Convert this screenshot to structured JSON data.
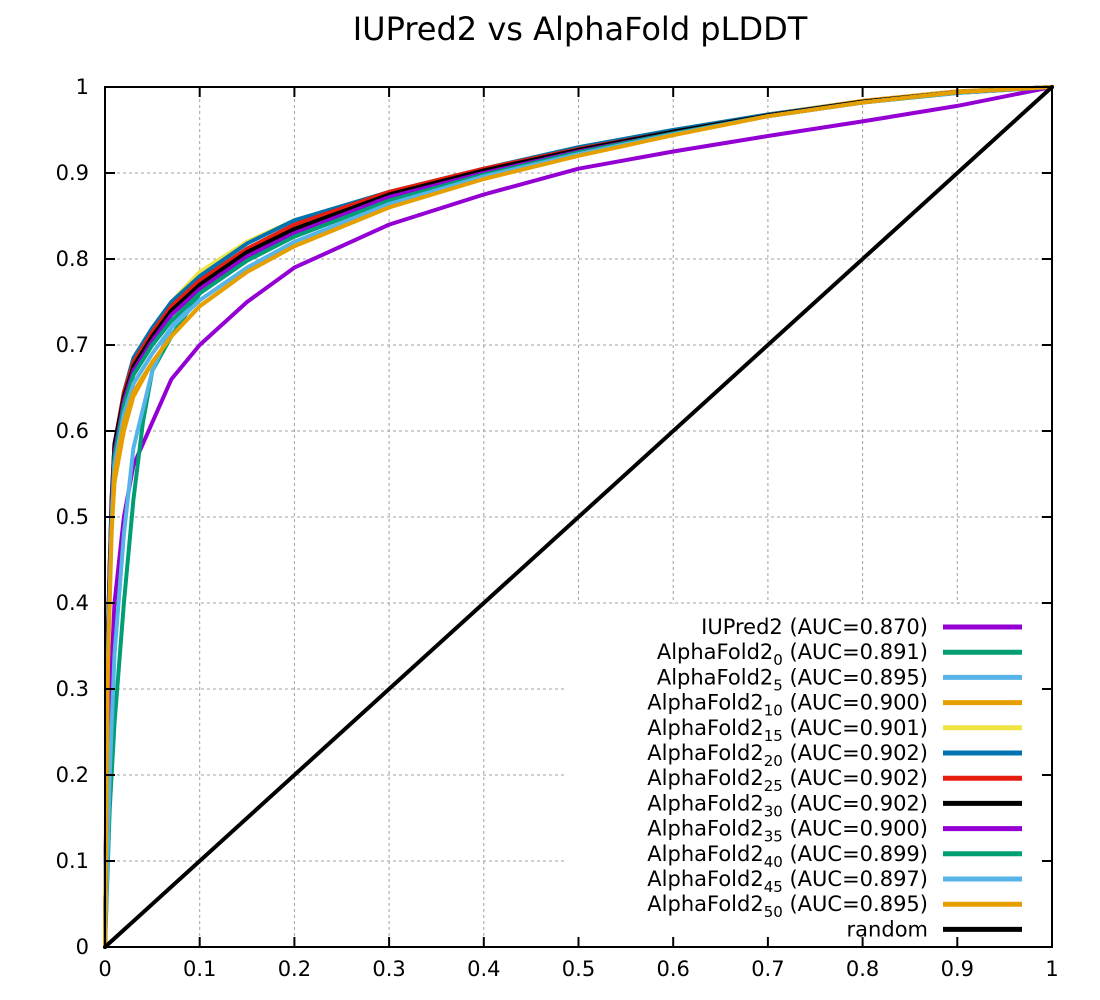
{
  "chart_data": {
    "type": "line",
    "title": "IUPred2 vs AlphaFold pLDDT",
    "xlabel": "",
    "ylabel": "",
    "xlim": [
      0,
      1
    ],
    "ylim": [
      0,
      1
    ],
    "xticks": [
      0,
      0.1,
      0.2,
      0.3,
      0.4,
      0.5,
      0.6,
      0.7,
      0.8,
      0.9,
      1
    ],
    "yticks": [
      0,
      0.1,
      0.2,
      0.3,
      0.4,
      0.5,
      0.6,
      0.7,
      0.8,
      0.9,
      1
    ],
    "xtick_labels": [
      "0",
      "0.1",
      "0.2",
      "0.3",
      "0.4",
      "0.5",
      "0.6",
      "0.7",
      "0.8",
      "0.9",
      "1"
    ],
    "ytick_labels": [
      "0",
      "0.1",
      "0.2",
      "0.3",
      "0.4",
      "0.5",
      "0.6",
      "0.7",
      "0.8",
      "0.9",
      "1"
    ],
    "grid": true,
    "legend_position": "bottom-right",
    "series": [
      {
        "name": "IUPred2",
        "subscript": "",
        "auc_label": "(AUC=0.870)",
        "color": "#9400d3",
        "x": [
          0,
          0.005,
          0.01,
          0.02,
          0.03,
          0.05,
          0.07,
          0.1,
          0.15,
          0.2,
          0.3,
          0.4,
          0.5,
          0.6,
          0.7,
          0.8,
          0.9,
          1
        ],
        "y": [
          0,
          0.28,
          0.4,
          0.5,
          0.56,
          0.61,
          0.66,
          0.7,
          0.75,
          0.79,
          0.84,
          0.875,
          0.905,
          0.925,
          0.943,
          0.96,
          0.978,
          1
        ]
      },
      {
        "name": "AlphaFold2",
        "subscript": "0",
        "auc_label": "(AUC=0.891)",
        "color": "#009e73",
        "x": [
          0,
          0.005,
          0.01,
          0.02,
          0.03,
          0.04,
          0.05,
          0.07,
          0.1,
          0.15,
          0.2,
          0.3,
          0.4,
          0.5,
          0.6,
          0.7,
          0.8,
          0.9,
          1
        ],
        "y": [
          0,
          0.16,
          0.26,
          0.4,
          0.52,
          0.61,
          0.67,
          0.71,
          0.76,
          0.8,
          0.83,
          0.868,
          0.902,
          0.928,
          0.948,
          0.967,
          0.982,
          0.993,
          1
        ]
      },
      {
        "name": "AlphaFold2",
        "subscript": "5",
        "auc_label": "(AUC=0.895)",
        "color": "#56b4e9",
        "x": [
          0,
          0.005,
          0.01,
          0.02,
          0.03,
          0.05,
          0.07,
          0.1,
          0.15,
          0.2,
          0.3,
          0.4,
          0.5,
          0.6,
          0.7,
          0.8,
          0.9,
          1
        ],
        "y": [
          0,
          0.2,
          0.34,
          0.48,
          0.58,
          0.67,
          0.72,
          0.765,
          0.805,
          0.835,
          0.872,
          0.905,
          0.93,
          0.95,
          0.968,
          0.983,
          0.993,
          1
        ]
      },
      {
        "name": "AlphaFold2",
        "subscript": "10",
        "auc_label": "(AUC=0.900)",
        "color": "#e69f00",
        "x": [
          0,
          0.002,
          0.005,
          0.01,
          0.02,
          0.03,
          0.05,
          0.07,
          0.1,
          0.15,
          0.2,
          0.3,
          0.4,
          0.5,
          0.6,
          0.7,
          0.8,
          0.9,
          1
        ],
        "y": [
          0,
          0.3,
          0.45,
          0.54,
          0.6,
          0.64,
          0.68,
          0.71,
          0.745,
          0.785,
          0.815,
          0.86,
          0.898,
          0.925,
          0.948,
          0.968,
          0.984,
          0.995,
          1
        ]
      },
      {
        "name": "AlphaFold2",
        "subscript": "15",
        "auc_label": "(AUC=0.901)",
        "color": "#f0e442",
        "x": [
          0,
          0.003,
          0.007,
          0.01,
          0.02,
          0.03,
          0.05,
          0.07,
          0.1,
          0.15,
          0.2,
          0.3,
          0.4,
          0.5,
          0.6,
          0.7,
          0.8,
          0.9,
          1
        ],
        "y": [
          0,
          0.34,
          0.5,
          0.57,
          0.64,
          0.68,
          0.72,
          0.75,
          0.785,
          0.82,
          0.845,
          0.878,
          0.905,
          0.93,
          0.95,
          0.968,
          0.983,
          0.994,
          1
        ]
      },
      {
        "name": "AlphaFold2",
        "subscript": "20",
        "auc_label": "(AUC=0.902)",
        "color": "#0072b2",
        "x": [
          0,
          0.003,
          0.007,
          0.01,
          0.02,
          0.03,
          0.05,
          0.07,
          0.1,
          0.15,
          0.2,
          0.3,
          0.4,
          0.5,
          0.6,
          0.7,
          0.8,
          0.9,
          1
        ],
        "y": [
          0,
          0.35,
          0.51,
          0.58,
          0.645,
          0.685,
          0.72,
          0.75,
          0.78,
          0.818,
          0.845,
          0.878,
          0.905,
          0.93,
          0.95,
          0.968,
          0.983,
          0.994,
          1
        ]
      },
      {
        "name": "AlphaFold2",
        "subscript": "25",
        "auc_label": "(AUC=0.902)",
        "color": "#e51e10",
        "x": [
          0,
          0.003,
          0.007,
          0.01,
          0.02,
          0.03,
          0.05,
          0.07,
          0.1,
          0.15,
          0.2,
          0.3,
          0.4,
          0.5,
          0.6,
          0.7,
          0.8,
          0.9,
          1
        ],
        "y": [
          0,
          0.36,
          0.52,
          0.585,
          0.645,
          0.68,
          0.715,
          0.745,
          0.775,
          0.812,
          0.84,
          0.878,
          0.905,
          0.928,
          0.948,
          0.967,
          0.983,
          0.994,
          1
        ]
      },
      {
        "name": "AlphaFold2",
        "subscript": "30",
        "auc_label": "(AUC=0.902)",
        "color": "#000000",
        "x": [
          0,
          0.003,
          0.007,
          0.01,
          0.02,
          0.03,
          0.05,
          0.07,
          0.1,
          0.15,
          0.2,
          0.3,
          0.4,
          0.5,
          0.6,
          0.7,
          0.8,
          0.9,
          1
        ],
        "y": [
          0,
          0.36,
          0.52,
          0.585,
          0.64,
          0.675,
          0.71,
          0.74,
          0.77,
          0.808,
          0.835,
          0.875,
          0.903,
          0.927,
          0.948,
          0.967,
          0.983,
          0.994,
          1
        ]
      },
      {
        "name": "AlphaFold2",
        "subscript": "35",
        "auc_label": "(AUC=0.900)",
        "color": "#9400d3",
        "x": [
          0,
          0.003,
          0.007,
          0.01,
          0.02,
          0.03,
          0.05,
          0.07,
          0.1,
          0.15,
          0.2,
          0.3,
          0.4,
          0.5,
          0.6,
          0.7,
          0.8,
          0.9,
          1
        ],
        "y": [
          0,
          0.35,
          0.51,
          0.575,
          0.635,
          0.67,
          0.705,
          0.735,
          0.765,
          0.803,
          0.83,
          0.872,
          0.9,
          0.925,
          0.946,
          0.966,
          0.982,
          0.994,
          1
        ]
      },
      {
        "name": "AlphaFold2",
        "subscript": "40",
        "auc_label": "(AUC=0.899)",
        "color": "#009e73",
        "x": [
          0,
          0.003,
          0.007,
          0.01,
          0.02,
          0.03,
          0.05,
          0.07,
          0.1,
          0.15,
          0.2,
          0.3,
          0.4,
          0.5,
          0.6,
          0.7,
          0.8,
          0.9,
          1
        ],
        "y": [
          0,
          0.34,
          0.5,
          0.57,
          0.63,
          0.665,
          0.7,
          0.728,
          0.76,
          0.798,
          0.826,
          0.868,
          0.898,
          0.924,
          0.946,
          0.966,
          0.982,
          0.994,
          1
        ]
      },
      {
        "name": "AlphaFold2",
        "subscript": "45",
        "auc_label": "(AUC=0.897)",
        "color": "#56b4e9",
        "x": [
          0,
          0.003,
          0.007,
          0.01,
          0.02,
          0.03,
          0.05,
          0.07,
          0.1,
          0.15,
          0.2,
          0.3,
          0.4,
          0.5,
          0.6,
          0.7,
          0.8,
          0.9,
          1
        ],
        "y": [
          0,
          0.33,
          0.49,
          0.56,
          0.62,
          0.655,
          0.69,
          0.72,
          0.752,
          0.79,
          0.82,
          0.864,
          0.896,
          0.922,
          0.945,
          0.966,
          0.982,
          0.994,
          1
        ]
      },
      {
        "name": "AlphaFold2",
        "subscript": "50",
        "auc_label": "(AUC=0.895)",
        "color": "#e69f00",
        "x": [
          0,
          0.003,
          0.007,
          0.01,
          0.02,
          0.03,
          0.05,
          0.07,
          0.1,
          0.15,
          0.2,
          0.3,
          0.4,
          0.5,
          0.6,
          0.7,
          0.8,
          0.9,
          1
        ],
        "y": [
          0,
          0.32,
          0.48,
          0.55,
          0.61,
          0.645,
          0.68,
          0.71,
          0.745,
          0.785,
          0.815,
          0.86,
          0.893,
          0.92,
          0.944,
          0.966,
          0.982,
          0.994,
          1
        ]
      },
      {
        "name": "random",
        "subscript": "",
        "auc_label": "",
        "color": "#000000",
        "x": [
          0,
          1
        ],
        "y": [
          0,
          1
        ]
      }
    ]
  }
}
